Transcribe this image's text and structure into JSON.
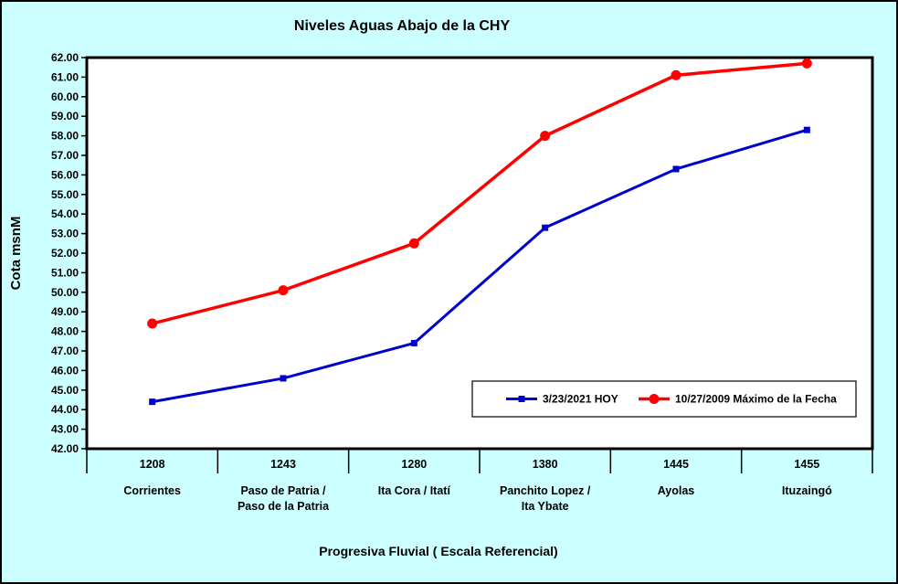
{
  "chart_data": {
    "type": "line",
    "title": "Niveles Aguas Abajo de la CHY",
    "xlabel": "Progresiva Fluvial ( Escala Referencial)",
    "ylabel": "Cota msnM",
    "ylim": [
      42,
      62
    ],
    "ytick_step": 1,
    "ytick_decimals": 2,
    "grid": false,
    "legend_position": "inside-bottom-right",
    "colors": {
      "background": "#CCFFFF",
      "plot_background": "#FFFFFF",
      "axis": "#000000"
    },
    "categories": [
      {
        "km": "1208",
        "name": [
          "Corrientes"
        ]
      },
      {
        "km": "1243",
        "name": [
          "Paso de Patria /",
          "Paso de la Patria"
        ]
      },
      {
        "km": "1280",
        "name": [
          "Ita Cora / Itatí"
        ]
      },
      {
        "km": "1380",
        "name": [
          "Panchito Lopez /",
          "Ita Ybate"
        ]
      },
      {
        "km": "1445",
        "name": [
          "Ayolas"
        ]
      },
      {
        "km": "1455",
        "name": [
          "Ituzaingó"
        ]
      }
    ],
    "series": [
      {
        "name": "3/23/2021 HOY",
        "color": "#0000CC",
        "marker": "square",
        "marker_size": 7,
        "line_width": 3,
        "values": [
          44.4,
          45.6,
          47.4,
          53.3,
          56.3,
          58.3
        ]
      },
      {
        "name": "10/27/2009 Máximo de la Fecha",
        "color": "#FF0000",
        "marker": "circle",
        "marker_size": 11,
        "line_width": 3.5,
        "values": [
          48.4,
          50.1,
          52.5,
          58.0,
          61.1,
          61.7
        ]
      }
    ]
  }
}
